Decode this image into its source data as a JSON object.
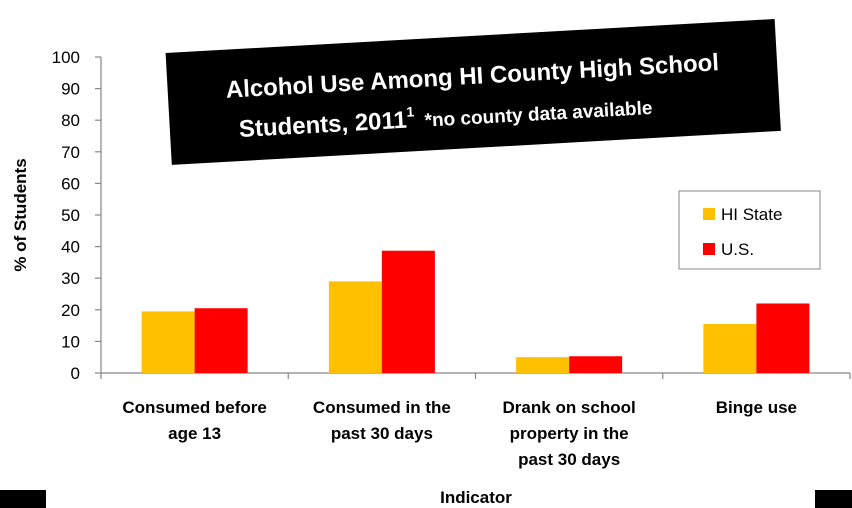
{
  "chart_data": {
    "type": "bar",
    "title": "Alcohol Use Among HI County High School Students, 2011",
    "title_line1": "Alcohol Use Among HI County High School",
    "title_line2": "Students, 2011",
    "title_superscript": "1",
    "title_note": "*no county data available",
    "xlabel": "Indicator",
    "ylabel": "% of Students",
    "ylim": [
      0,
      100
    ],
    "yticks": [
      0,
      10,
      20,
      30,
      40,
      50,
      60,
      70,
      80,
      90,
      100
    ],
    "grid": false,
    "legend_position": "right",
    "categories": [
      [
        "Consumed before",
        "age 13"
      ],
      [
        "Consumed in the",
        "past 30 days"
      ],
      [
        "Drank on school",
        "property in the",
        "past 30 days"
      ],
      [
        "Binge use"
      ]
    ],
    "series": [
      {
        "name": "HI State",
        "color": "#FFC000",
        "values": [
          19.5,
          29,
          5,
          15.5
        ]
      },
      {
        "name": "U.S.",
        "color": "#FF0000",
        "values": [
          20.5,
          38.7,
          5.3,
          22
        ]
      }
    ]
  }
}
